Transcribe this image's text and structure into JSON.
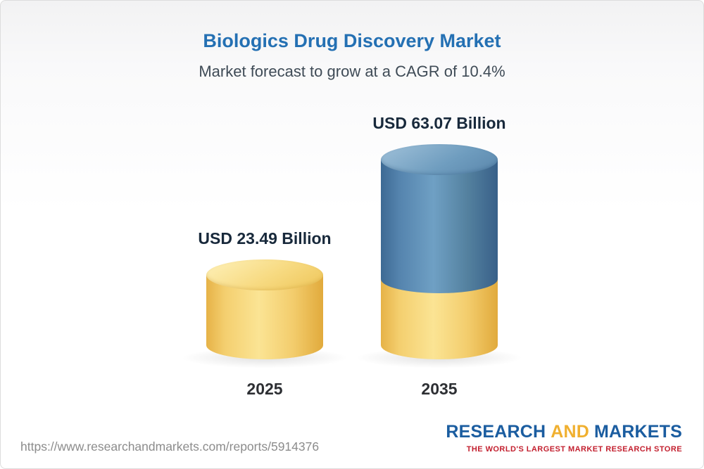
{
  "page": {
    "title": "Biologics Drug Discovery Market",
    "subtitle": "Market forecast to grow at a CAGR of 10.4%",
    "source_url": "https://www.researchandmarkets.com/reports/5914376"
  },
  "chart_data": {
    "type": "bar",
    "title": "Biologics Drug Discovery Market",
    "subtitle": "Market forecast to grow at a CAGR of 10.4%",
    "categories": [
      "2025",
      "2035"
    ],
    "values": [
      23.49,
      63.07
    ],
    "value_labels": [
      "USD 23.49 Billion",
      "USD 63.07 Billion"
    ],
    "unit": "USD Billion",
    "cagr": "10.4%",
    "legend_position": "none",
    "grid": false,
    "colors": {
      "bar_2025": "#f6cf6b",
      "bar_2035_top": "#54819f",
      "bar_2035_base": "#f6cf6b",
      "title": "#2470b3"
    }
  },
  "logo": {
    "research": "RESEARCH",
    "and": "AND",
    "markets": "MARKETS",
    "tagline": "THE WORLD'S LARGEST MARKET RESEARCH STORE"
  }
}
